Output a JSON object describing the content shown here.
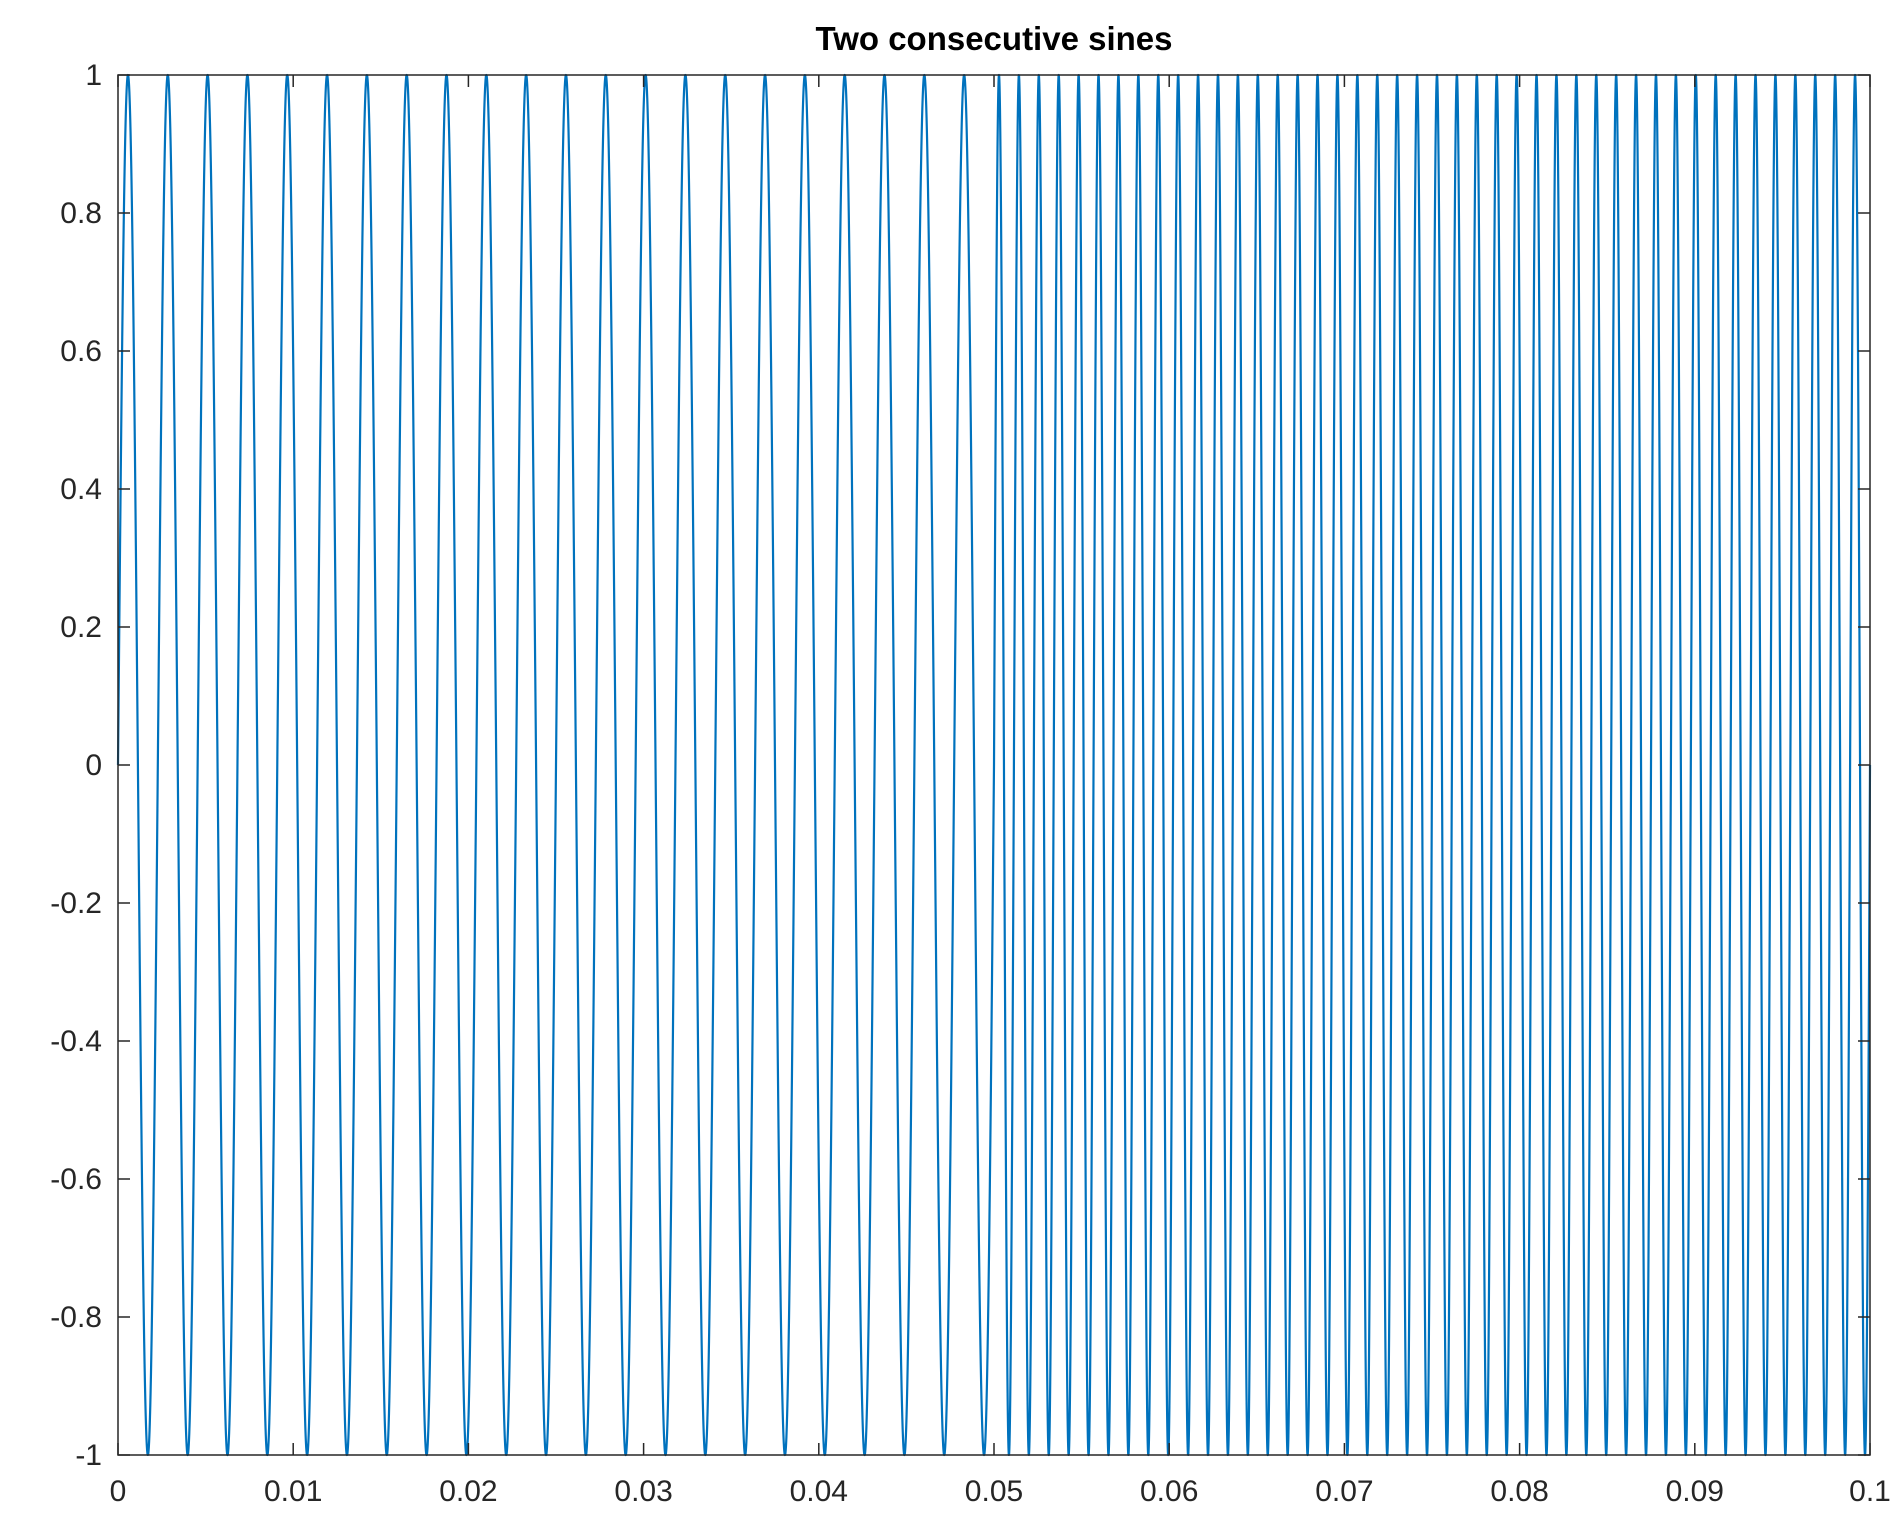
{
  "chart_data": {
    "type": "line",
    "title": "Two consecutive sines",
    "xlabel": "",
    "ylabel": "",
    "xlim": [
      0,
      0.1
    ],
    "ylim": [
      -1,
      1
    ],
    "grid": false,
    "box": true,
    "x_ticks": [
      0,
      0.01,
      0.02,
      0.03,
      0.04,
      0.05,
      0.06,
      0.07,
      0.08,
      0.09,
      0.1
    ],
    "x_tick_labels": [
      "0",
      "0.01",
      "0.02",
      "0.03",
      "0.04",
      "0.05",
      "0.06",
      "0.07",
      "0.08",
      "0.09",
      "0.1"
    ],
    "y_ticks": [
      -1,
      -0.8,
      -0.6,
      -0.4,
      -0.2,
      0,
      0.2,
      0.4,
      0.6,
      0.8,
      1
    ],
    "y_tick_labels": [
      "-1",
      "-0.8",
      "-0.6",
      "-0.4",
      "-0.2",
      "0",
      "0.2",
      "0.4",
      "0.6",
      "0.8",
      "1"
    ],
    "series": [
      {
        "color": "#0072BD",
        "segments": [
          {
            "x_start": 0,
            "x_end": 0.05,
            "frequency": 440,
            "amplitude": 1
          },
          {
            "x_start": 0.05,
            "x_end": 0.1,
            "frequency": 880,
            "amplitude": 1
          }
        ]
      }
    ]
  }
}
